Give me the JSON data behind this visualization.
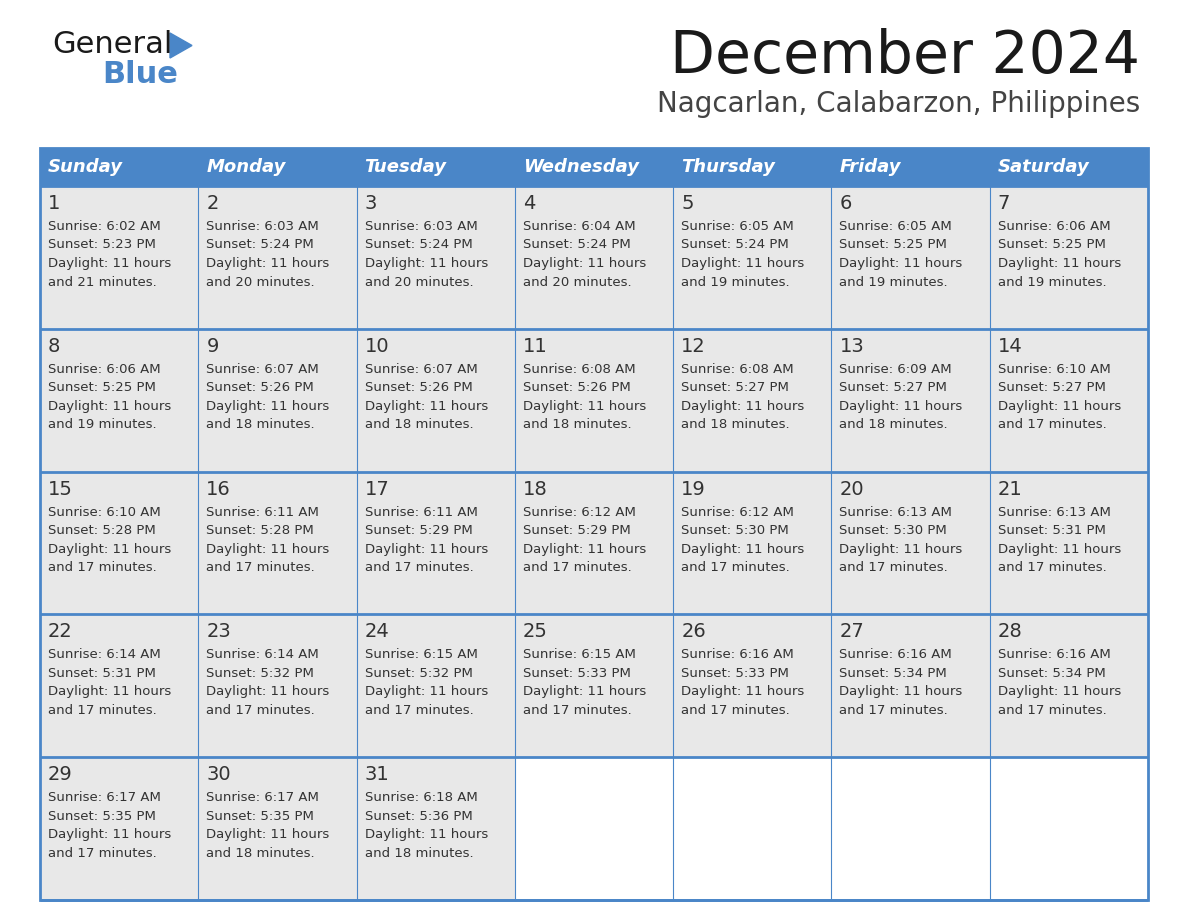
{
  "title": "December 2024",
  "subtitle": "Nagcarlan, Calabarzon, Philippines",
  "header_color": "#4A86C8",
  "header_text_color": "#FFFFFF",
  "cell_bg_color": "#E8E8E8",
  "empty_cell_bg_color": "#FFFFFF",
  "border_color": "#4A86C8",
  "text_color": "#333333",
  "day_names": [
    "Sunday",
    "Monday",
    "Tuesday",
    "Wednesday",
    "Thursday",
    "Friday",
    "Saturday"
  ],
  "weeks": [
    [
      {
        "day": 1,
        "sunrise": "6:02 AM",
        "sunset": "5:23 PM",
        "daylight_hours": 11,
        "daylight_minutes": 21
      },
      {
        "day": 2,
        "sunrise": "6:03 AM",
        "sunset": "5:24 PM",
        "daylight_hours": 11,
        "daylight_minutes": 20
      },
      {
        "day": 3,
        "sunrise": "6:03 AM",
        "sunset": "5:24 PM",
        "daylight_hours": 11,
        "daylight_minutes": 20
      },
      {
        "day": 4,
        "sunrise": "6:04 AM",
        "sunset": "5:24 PM",
        "daylight_hours": 11,
        "daylight_minutes": 20
      },
      {
        "day": 5,
        "sunrise": "6:05 AM",
        "sunset": "5:24 PM",
        "daylight_hours": 11,
        "daylight_minutes": 19
      },
      {
        "day": 6,
        "sunrise": "6:05 AM",
        "sunset": "5:25 PM",
        "daylight_hours": 11,
        "daylight_minutes": 19
      },
      {
        "day": 7,
        "sunrise": "6:06 AM",
        "sunset": "5:25 PM",
        "daylight_hours": 11,
        "daylight_minutes": 19
      }
    ],
    [
      {
        "day": 8,
        "sunrise": "6:06 AM",
        "sunset": "5:25 PM",
        "daylight_hours": 11,
        "daylight_minutes": 19
      },
      {
        "day": 9,
        "sunrise": "6:07 AM",
        "sunset": "5:26 PM",
        "daylight_hours": 11,
        "daylight_minutes": 18
      },
      {
        "day": 10,
        "sunrise": "6:07 AM",
        "sunset": "5:26 PM",
        "daylight_hours": 11,
        "daylight_minutes": 18
      },
      {
        "day": 11,
        "sunrise": "6:08 AM",
        "sunset": "5:26 PM",
        "daylight_hours": 11,
        "daylight_minutes": 18
      },
      {
        "day": 12,
        "sunrise": "6:08 AM",
        "sunset": "5:27 PM",
        "daylight_hours": 11,
        "daylight_minutes": 18
      },
      {
        "day": 13,
        "sunrise": "6:09 AM",
        "sunset": "5:27 PM",
        "daylight_hours": 11,
        "daylight_minutes": 18
      },
      {
        "day": 14,
        "sunrise": "6:10 AM",
        "sunset": "5:27 PM",
        "daylight_hours": 11,
        "daylight_minutes": 17
      }
    ],
    [
      {
        "day": 15,
        "sunrise": "6:10 AM",
        "sunset": "5:28 PM",
        "daylight_hours": 11,
        "daylight_minutes": 17
      },
      {
        "day": 16,
        "sunrise": "6:11 AM",
        "sunset": "5:28 PM",
        "daylight_hours": 11,
        "daylight_minutes": 17
      },
      {
        "day": 17,
        "sunrise": "6:11 AM",
        "sunset": "5:29 PM",
        "daylight_hours": 11,
        "daylight_minutes": 17
      },
      {
        "day": 18,
        "sunrise": "6:12 AM",
        "sunset": "5:29 PM",
        "daylight_hours": 11,
        "daylight_minutes": 17
      },
      {
        "day": 19,
        "sunrise": "6:12 AM",
        "sunset": "5:30 PM",
        "daylight_hours": 11,
        "daylight_minutes": 17
      },
      {
        "day": 20,
        "sunrise": "6:13 AM",
        "sunset": "5:30 PM",
        "daylight_hours": 11,
        "daylight_minutes": 17
      },
      {
        "day": 21,
        "sunrise": "6:13 AM",
        "sunset": "5:31 PM",
        "daylight_hours": 11,
        "daylight_minutes": 17
      }
    ],
    [
      {
        "day": 22,
        "sunrise": "6:14 AM",
        "sunset": "5:31 PM",
        "daylight_hours": 11,
        "daylight_minutes": 17
      },
      {
        "day": 23,
        "sunrise": "6:14 AM",
        "sunset": "5:32 PM",
        "daylight_hours": 11,
        "daylight_minutes": 17
      },
      {
        "day": 24,
        "sunrise": "6:15 AM",
        "sunset": "5:32 PM",
        "daylight_hours": 11,
        "daylight_minutes": 17
      },
      {
        "day": 25,
        "sunrise": "6:15 AM",
        "sunset": "5:33 PM",
        "daylight_hours": 11,
        "daylight_minutes": 17
      },
      {
        "day": 26,
        "sunrise": "6:16 AM",
        "sunset": "5:33 PM",
        "daylight_hours": 11,
        "daylight_minutes": 17
      },
      {
        "day": 27,
        "sunrise": "6:16 AM",
        "sunset": "5:34 PM",
        "daylight_hours": 11,
        "daylight_minutes": 17
      },
      {
        "day": 28,
        "sunrise": "6:16 AM",
        "sunset": "5:34 PM",
        "daylight_hours": 11,
        "daylight_minutes": 17
      }
    ],
    [
      {
        "day": 29,
        "sunrise": "6:17 AM",
        "sunset": "5:35 PM",
        "daylight_hours": 11,
        "daylight_minutes": 17
      },
      {
        "day": 30,
        "sunrise": "6:17 AM",
        "sunset": "5:35 PM",
        "daylight_hours": 11,
        "daylight_minutes": 18
      },
      {
        "day": 31,
        "sunrise": "6:18 AM",
        "sunset": "5:36 PM",
        "daylight_hours": 11,
        "daylight_minutes": 18
      },
      null,
      null,
      null,
      null
    ]
  ]
}
